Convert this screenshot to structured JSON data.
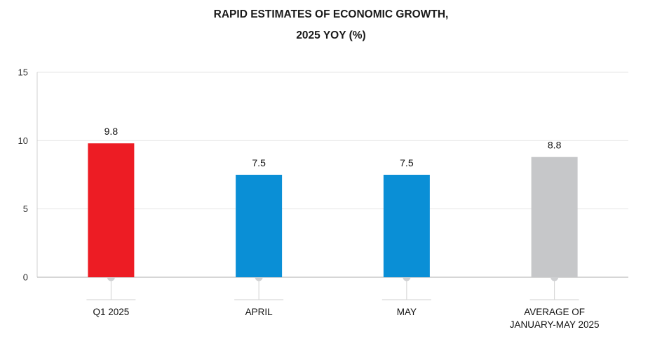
{
  "chart_data": {
    "type": "bar",
    "title_lines": [
      "RAPID ESTIMATES OF ECONOMIC GROWTH,",
      "2025 YOY (%)"
    ],
    "categories": [
      [
        "Q1 2025"
      ],
      [
        "APRIL"
      ],
      [
        "MAY"
      ],
      [
        "AVERAGE OF",
        "JANUARY-MAY 2025"
      ]
    ],
    "values": [
      9.8,
      7.5,
      7.5,
      8.8
    ],
    "value_labels": [
      "9.8",
      "7.5",
      "7.5",
      "8.8"
    ],
    "colors": [
      "#ED1C24",
      "#0A8FD6",
      "#0A8FD6",
      "#C6C7C9"
    ],
    "ylim": [
      0,
      15
    ],
    "yticks": [
      0,
      5,
      10,
      15
    ],
    "ytick_labels": [
      "0",
      "5",
      "10",
      "15"
    ],
    "grid": true,
    "xlabel": "",
    "ylabel": ""
  }
}
